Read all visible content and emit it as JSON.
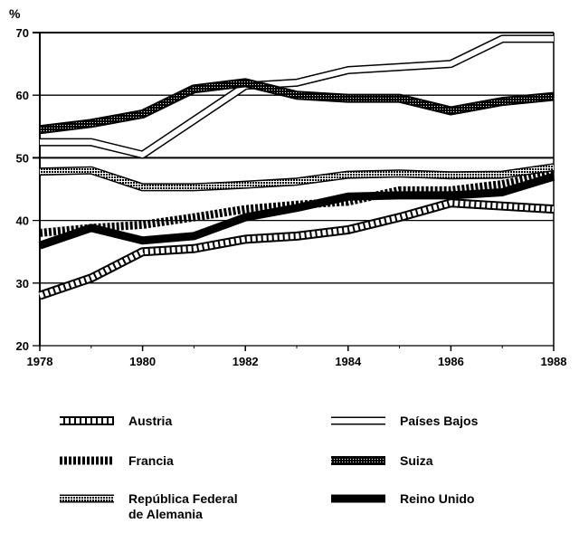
{
  "chart_data": {
    "type": "line",
    "ylabel": "%",
    "ylim": [
      20,
      70
    ],
    "yticks": [
      20,
      30,
      40,
      50,
      60,
      70
    ],
    "x": [
      1978,
      1979,
      1980,
      1981,
      1982,
      1983,
      1984,
      1985,
      1986,
      1987,
      1988
    ],
    "xticks": [
      1978,
      1980,
      1982,
      1984,
      1986,
      1988
    ],
    "grid": true,
    "legend_placement": "bottom",
    "series": [
      {
        "name": "Austria",
        "style": "squares",
        "values": [
          28,
          30.8,
          35,
          35.5,
          37,
          37.5,
          38.5,
          40.5,
          42.8,
          42.3,
          41.8
        ]
      },
      {
        "name": "Francia",
        "style": "diagonal-hatch",
        "values": [
          38,
          38.8,
          39.3,
          40.5,
          41.8,
          42.5,
          43,
          44.8,
          44.8,
          45.8,
          47.5
        ]
      },
      {
        "name": "República Federal de Alemania",
        "style": "dotted-band",
        "values": [
          47.8,
          48,
          45.3,
          45.3,
          45.7,
          46.2,
          47.3,
          47.5,
          47.2,
          47.3,
          48.5
        ]
      },
      {
        "name": "Países Bajos",
        "style": "double-line",
        "values": [
          52.5,
          52.5,
          50.5,
          56,
          61.5,
          62,
          64,
          64.5,
          65,
          69,
          69
        ]
      },
      {
        "name": "Suiza",
        "style": "dark-hatch",
        "values": [
          54.5,
          55.5,
          57,
          61,
          62,
          60,
          59.5,
          59.5,
          57.5,
          59,
          59.8
        ]
      },
      {
        "name": "Reino Unido",
        "style": "solid-black",
        "values": [
          36,
          38.8,
          36.8,
          37.5,
          40.5,
          42,
          43.8,
          44,
          44,
          44.5,
          47
        ]
      }
    ]
  }
}
